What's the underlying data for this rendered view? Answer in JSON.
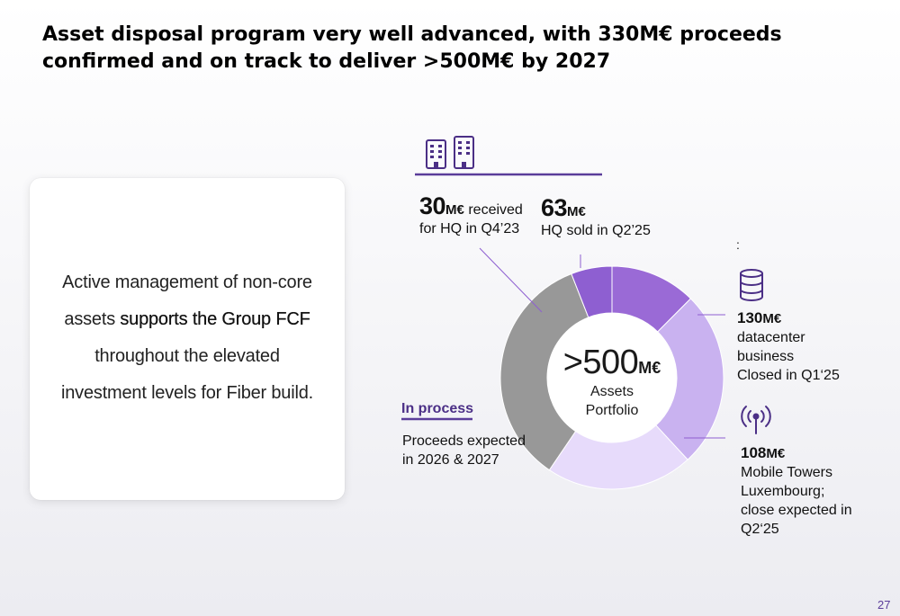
{
  "title": "Asset disposal program very well advanced, with 330M€ proceeds confirmed and on track to deliver >500M€ by 2027",
  "card": {
    "line1": "Active management of non-core",
    "line2_pre": "assets ",
    "line2_strong": "supports the Group FCF",
    "line3": "throughout the elevated",
    "line4": "investment levels for Fiber build."
  },
  "center": {
    "value": ">500",
    "unit": "M€",
    "sub1": "Assets",
    "sub2": "Portfolio"
  },
  "labels": {
    "hq_received": {
      "value": "30",
      "unit": "M€",
      "suffix": " received",
      "desc": "for HQ in Q4’23"
    },
    "hq_sold": {
      "value": "63",
      "unit": "M€",
      "desc": "HQ sold in Q2’25"
    },
    "colon": ":",
    "datacenter": {
      "value": "130",
      "unit": "M€",
      "d1": "datacenter",
      "d2": "business",
      "d3": "Closed in Q1‘25"
    },
    "towers": {
      "value": "108",
      "unit": "M€",
      "d1": "Mobile Towers",
      "d2": "Luxembourg;",
      "d3": "close expected in",
      "d4": "Q2‘25"
    },
    "in_process": "In process",
    "proceeds1": "Proceeds expected",
    "proceeds2": "in 2026 & 2027"
  },
  "page_number": "27",
  "colors": {
    "hq_received": "#8e5fd1",
    "hq_sold": "#9a6ad6",
    "datacenter": "#c9b2f0",
    "towers": "#e7dbfb",
    "in_process": "#989898",
    "accent": "#5b3d9a"
  },
  "icons": [
    "buildings-icon",
    "database-icon",
    "antenna-icon"
  ],
  "chart_data": {
    "type": "pie",
    "variant": "donut",
    "unit": "M€",
    "total_label": ">500",
    "slices": [
      {
        "label": "HQ sold in Q2’25",
        "value": 63
      },
      {
        "label": "datacenter business Closed in Q1‘25",
        "value": 130
      },
      {
        "label": "Mobile Towers Luxembourg; close expected in Q2‘25",
        "value": 108
      },
      {
        "label": "In process",
        "value": 175
      },
      {
        "label": "for HQ in Q4’23",
        "value": 30
      }
    ]
  }
}
